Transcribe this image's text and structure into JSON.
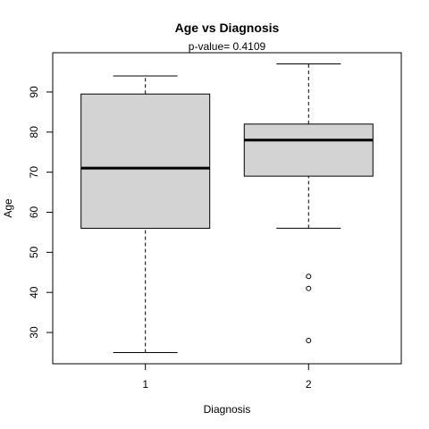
{
  "chart_data": {
    "type": "box",
    "title": "Age  vs  Diagnosis",
    "subtitle": "p-value= 0.4109",
    "xlabel": "Diagnosis",
    "ylabel": "Age",
    "ylim": [
      22.2,
      99.8
    ],
    "y_ticks": [
      30,
      40,
      50,
      60,
      70,
      80,
      90
    ],
    "grid": false,
    "box_fill": "#d3d3d3",
    "categories": [
      "1",
      "2"
    ],
    "boxes": [
      {
        "category": "1",
        "whisker_low": 25,
        "q1": 56,
        "median": 71,
        "q3": 89.5,
        "whisker_high": 94,
        "outliers": []
      },
      {
        "category": "2",
        "whisker_low": 56,
        "q1": 69,
        "median": 78,
        "q3": 82,
        "whisker_high": 97,
        "outliers": [
          28,
          41,
          44
        ]
      }
    ]
  }
}
